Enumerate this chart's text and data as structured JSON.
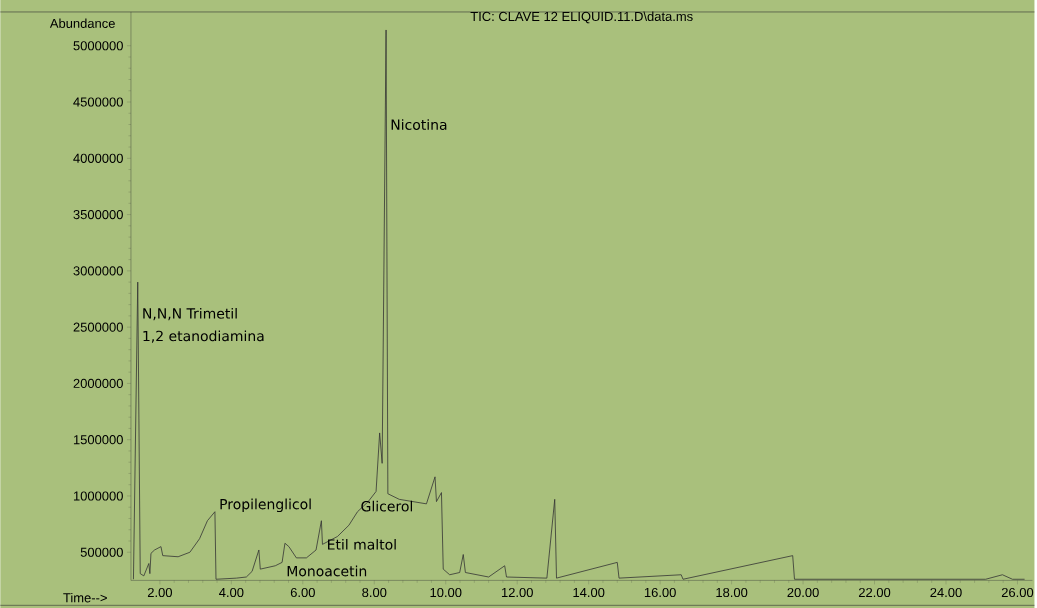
{
  "chart_data": {
    "type": "line",
    "title": "TIC: CLAVE 12 ELIQUID.11.D\\data.ms",
    "xlabel": "Time-->",
    "ylabel": "Abundance",
    "xlim": [
      1.19,
      26.42
    ],
    "ylim": [
      250000,
      5300000
    ],
    "xticks": [
      {
        "value": 2,
        "label": "2.00"
      },
      {
        "value": 4,
        "label": "4.00"
      },
      {
        "value": 6,
        "label": "6.00"
      },
      {
        "value": 8,
        "label": "8.00"
      },
      {
        "value": 10,
        "label": "10.00"
      },
      {
        "value": 12,
        "label": "12.00"
      },
      {
        "value": 14,
        "label": "14.00"
      },
      {
        "value": 16,
        "label": "16.00"
      },
      {
        "value": 18,
        "label": "18.00"
      },
      {
        "value": 20,
        "label": "20.00"
      },
      {
        "value": 22,
        "label": "22.00"
      },
      {
        "value": 24,
        "label": "24.00"
      },
      {
        "value": 26,
        "label": "26.00"
      }
    ],
    "yticks": [
      500000,
      1000000,
      1500000,
      2000000,
      2500000,
      3000000,
      3500000,
      4000000,
      4500000,
      5000000
    ],
    "grid": false,
    "marker": "none",
    "line_style": "solid",
    "x": [
      1.26,
      1.38,
      1.45,
      1.55,
      1.69,
      1.72,
      1.75,
      1.85,
      2.03,
      2.08,
      2.51,
      2.84,
      3.11,
      3.33,
      3.54,
      3.57,
      4.14,
      4.42,
      4.58,
      4.77,
      4.81,
      5.23,
      5.42,
      5.5,
      5.61,
      5.82,
      6.1,
      6.37,
      6.52,
      6.55,
      6.97,
      7.29,
      7.53,
      7.83,
      8.05,
      8.15,
      8.22,
      8.33,
      8.38,
      8.7,
      9.46,
      9.7,
      9.74,
      9.88,
      9.93,
      10.11,
      10.39,
      10.49,
      10.55,
      11.2,
      11.65,
      11.7,
      12.83,
      13.05,
      13.1,
      14.8,
      14.85,
      16.59,
      16.64,
      19.71,
      19.76,
      25.11,
      25.58,
      25.86,
      26.2
    ],
    "series": [
      {
        "color": "#333333",
        "values": [
          260000,
          2900000,
          310000,
          290000,
          400000,
          310000,
          490000,
          520000,
          550000,
          470000,
          460000,
          500000,
          620000,
          780000,
          860000,
          260000,
          270000,
          280000,
          330000,
          520000,
          350000,
          380000,
          410000,
          580000,
          550000,
          450000,
          450000,
          520000,
          780000,
          570000,
          640000,
          740000,
          860000,
          950000,
          1040000,
          1560000,
          1290000,
          5140000,
          1020000,
          970000,
          930000,
          1170000,
          950000,
          1030000,
          350000,
          300000,
          320000,
          480000,
          320000,
          280000,
          380000,
          280000,
          270000,
          970000,
          270000,
          410000,
          270000,
          300000,
          260000,
          470000,
          260000,
          260000,
          300000,
          260000,
          260000
        ]
      }
    ],
    "annotations": [
      {
        "text": "N,N,N Trimetil",
        "x": 1.38,
        "y": 2560000
      },
      {
        "text": "1,2 etanodiamina",
        "x": 1.38,
        "y": 2360000
      },
      {
        "text": "Nicotina",
        "x": 8.33,
        "y": 4250000
      },
      {
        "text": "Propilenglicol",
        "x": 3.54,
        "y": 855000
      },
      {
        "text": "Glicerol",
        "x": 7.5,
        "y": 860000
      },
      {
        "text": "Etil maltol",
        "x": 6.55,
        "y": 570000
      },
      {
        "text": "Monoacetin",
        "x": 5.42,
        "y": 410000
      }
    ]
  }
}
